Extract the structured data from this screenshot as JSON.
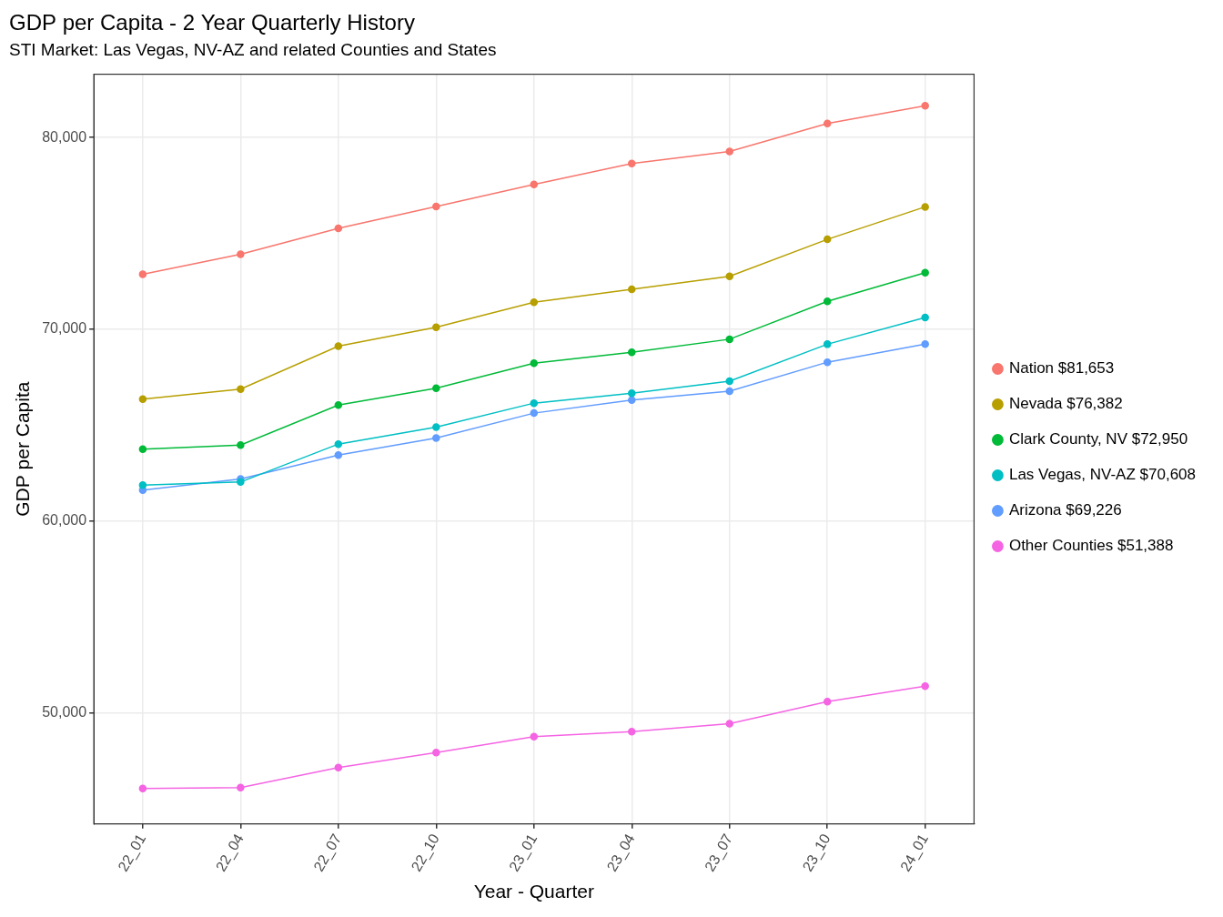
{
  "chart_data": {
    "type": "line",
    "title": "GDP per Capita - 2 Year Quarterly History",
    "subtitle": "STI Market: Las Vegas, NV-AZ and related Counties and States",
    "x_label": "Year - Quarter",
    "y_label": "GDP per Capita",
    "categories": [
      "22_01",
      "22_04",
      "22_07",
      "22_10",
      "23_01",
      "23_04",
      "23_07",
      "23_10",
      "24_01"
    ],
    "series": [
      {
        "name": "Nation $81,653",
        "color": "#F8766D",
        "values": [
          72865,
          73906,
          75260,
          76406,
          77552,
          78646,
          79271,
          80729,
          81653
        ]
      },
      {
        "name": "Nevada $76,382",
        "color": "#B79F00",
        "values": [
          66354,
          66875,
          69115,
          70104,
          71406,
          72083,
          72760,
          74688,
          76382
        ]
      },
      {
        "name": "Clark County, NV $72,950",
        "color": "#00BA38",
        "values": [
          63750,
          63958,
          66042,
          66927,
          68229,
          68802,
          69479,
          71458,
          72950
        ]
      },
      {
        "name": "Las Vegas, NV-AZ $70,608",
        "color": "#00BFC4",
        "values": [
          61875,
          62031,
          64010,
          64896,
          66146,
          66667,
          67292,
          69219,
          70608
        ]
      },
      {
        "name": "Arizona $69,226",
        "color": "#619CFF",
        "values": [
          61615,
          62188,
          63438,
          64323,
          65625,
          66302,
          66771,
          68281,
          69226
        ]
      },
      {
        "name": "Other Counties $51,388",
        "color": "#F564E3",
        "values": [
          46042,
          46094,
          47135,
          47917,
          48750,
          49010,
          49427,
          50573,
          51388
        ]
      }
    ],
    "ylim": [
      44200,
      83300
    ],
    "yticks": [
      {
        "value": 50000,
        "label": "50,000"
      },
      {
        "value": 60000,
        "label": "60,000"
      },
      {
        "value": 70000,
        "label": "70,000"
      },
      {
        "value": 80000,
        "label": "80,000"
      }
    ],
    "grid": true,
    "legend": "right",
    "marker": "circle"
  }
}
